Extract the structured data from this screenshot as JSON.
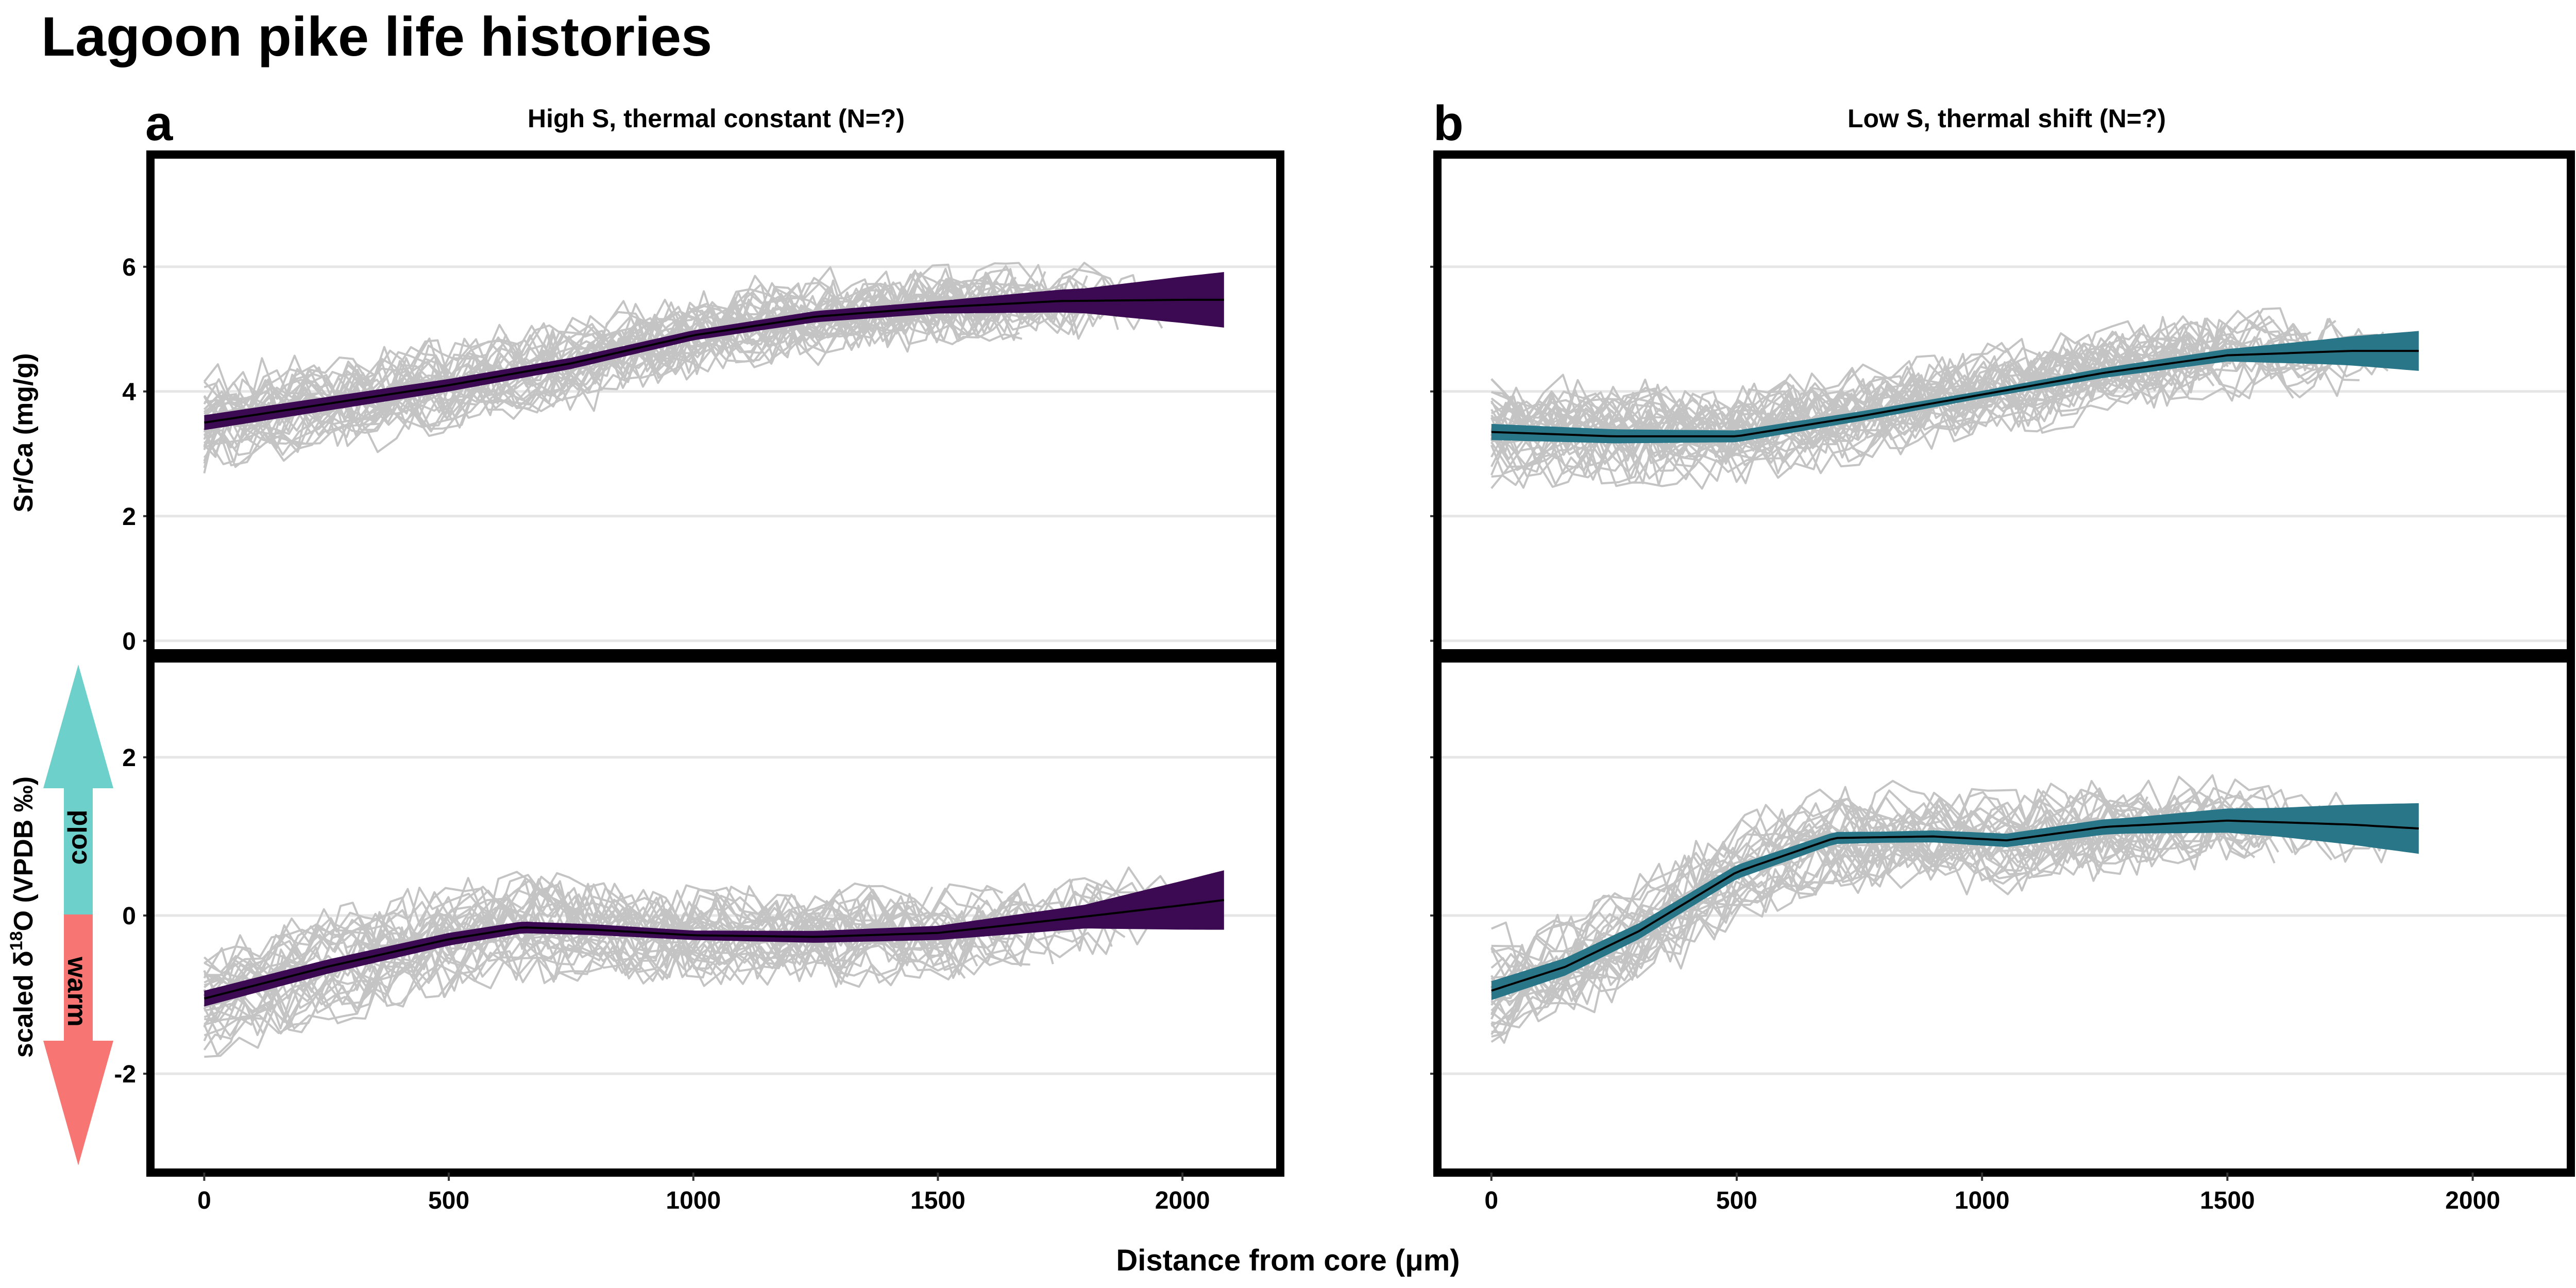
{
  "figure": {
    "title": "Lagoon pike life histories",
    "xlabel": "Distance from core (μm)",
    "ylabel_top": "Sr/Ca (mg/g)",
    "ylabel_bottom_prefix": "scaled δ",
    "ylabel_bottom_sup": "18",
    "ylabel_bottom_suffix": "O (VPDB ‰)",
    "arrow_cold": "cold",
    "arrow_warm": "warm",
    "colors": {
      "panel_a": "#3b0a52",
      "panel_b": "#2a7689",
      "individual": "#c4c4c4",
      "arrow_cold": "#6dd0cb",
      "arrow_warm": "#f77572",
      "grid": "#e6e6e6"
    }
  },
  "panels": [
    {
      "letter": "a",
      "title": "High S, thermal constant (N=?)"
    },
    {
      "letter": "b",
      "title": "Low S, thermal shift (N=?)"
    }
  ],
  "axes": {
    "x_ticks": [
      "0",
      "500",
      "1000",
      "1500",
      "2000"
    ],
    "top_y_ticks": [
      "0",
      "2",
      "4",
      "6"
    ],
    "bottom_y_ticks": [
      "-2",
      "0",
      "2"
    ]
  },
  "chart_data": {
    "type": "line",
    "x": {
      "label": "Distance from core (μm)",
      "range": [
        -110,
        2200
      ],
      "ticks": [
        0,
        500,
        1000,
        1500,
        2000
      ]
    },
    "grid": "horizontal",
    "facets": [
      {
        "panel": "a",
        "row": "Sr/Ca",
        "ylim": [
          -0.2,
          7.8
        ],
        "yticks": [
          0,
          2,
          4,
          6
        ],
        "x_max_fit": 2090,
        "mean": [
          [
            0,
            3.5
          ],
          [
            250,
            3.8
          ],
          [
            500,
            4.1
          ],
          [
            750,
            4.45
          ],
          [
            1000,
            4.9
          ],
          [
            1250,
            5.2
          ],
          [
            1500,
            5.35
          ],
          [
            1750,
            5.45
          ],
          [
            2000,
            5.47
          ],
          [
            2090,
            5.47
          ]
        ],
        "band_halfwidth": [
          [
            0,
            0.12
          ],
          [
            1000,
            0.08
          ],
          [
            1500,
            0.1
          ],
          [
            1800,
            0.2
          ],
          [
            2090,
            0.45
          ]
        ],
        "individuals": {
          "count": 32,
          "x_min": 0,
          "x_max_range": [
            1550,
            2000
          ],
          "center": "mean",
          "spread": 0.55,
          "noise": 0.45
        }
      },
      {
        "panel": "b",
        "row": "Sr/Ca",
        "ylim": [
          -0.2,
          7.8
        ],
        "yticks": [
          0,
          2,
          4,
          6
        ],
        "x_max_fit": 1890,
        "mean": [
          [
            0,
            3.35
          ],
          [
            250,
            3.28
          ],
          [
            500,
            3.28
          ],
          [
            750,
            3.6
          ],
          [
            1000,
            3.95
          ],
          [
            1250,
            4.3
          ],
          [
            1500,
            4.58
          ],
          [
            1750,
            4.65
          ],
          [
            1890,
            4.65
          ]
        ],
        "band_halfwidth": [
          [
            0,
            0.13
          ],
          [
            1000,
            0.06
          ],
          [
            1500,
            0.1
          ],
          [
            1700,
            0.2
          ],
          [
            1890,
            0.32
          ]
        ],
        "individuals": {
          "count": 34,
          "x_min": 0,
          "x_max_range": [
            1400,
            1850
          ],
          "center": "mean",
          "spread": 0.55,
          "noise": 0.45
        }
      },
      {
        "panel": "a",
        "row": "d18O",
        "ylim": [
          -3.25,
          3.25
        ],
        "yticks": [
          -2,
          0,
          2
        ],
        "x_max_fit": 2090,
        "mean": [
          [
            0,
            -1.05
          ],
          [
            250,
            -0.65
          ],
          [
            500,
            -0.3
          ],
          [
            650,
            -0.15
          ],
          [
            800,
            -0.18
          ],
          [
            1000,
            -0.25
          ],
          [
            1250,
            -0.27
          ],
          [
            1500,
            -0.22
          ],
          [
            1750,
            -0.05
          ],
          [
            2000,
            0.13
          ],
          [
            2090,
            0.2
          ]
        ],
        "band_halfwidth": [
          [
            0,
            0.1
          ],
          [
            1000,
            0.06
          ],
          [
            1500,
            0.09
          ],
          [
            1800,
            0.15
          ],
          [
            2090,
            0.38
          ]
        ],
        "individuals": {
          "count": 30,
          "x_min": 0,
          "x_max_range": [
            1500,
            2000
          ],
          "center": "mean",
          "spread": 0.5,
          "noise": 0.35
        }
      },
      {
        "panel": "b",
        "row": "d18O",
        "ylim": [
          -3.25,
          3.25
        ],
        "yticks": [
          -2,
          0,
          2
        ],
        "x_max_fit": 1890,
        "mean": [
          [
            0,
            -0.95
          ],
          [
            150,
            -0.65
          ],
          [
            300,
            -0.2
          ],
          [
            500,
            0.55
          ],
          [
            700,
            0.98
          ],
          [
            900,
            1.0
          ],
          [
            1050,
            0.95
          ],
          [
            1250,
            1.12
          ],
          [
            1500,
            1.2
          ],
          [
            1750,
            1.15
          ],
          [
            1890,
            1.1
          ]
        ],
        "band_halfwidth": [
          [
            0,
            0.12
          ],
          [
            800,
            0.07
          ],
          [
            1300,
            0.1
          ],
          [
            1600,
            0.18
          ],
          [
            1890,
            0.32
          ]
        ],
        "individuals": {
          "count": 28,
          "x_min": 0,
          "x_max_range": [
            1300,
            1900
          ],
          "center": "mean",
          "spread": 0.5,
          "noise": 0.35
        }
      }
    ]
  }
}
